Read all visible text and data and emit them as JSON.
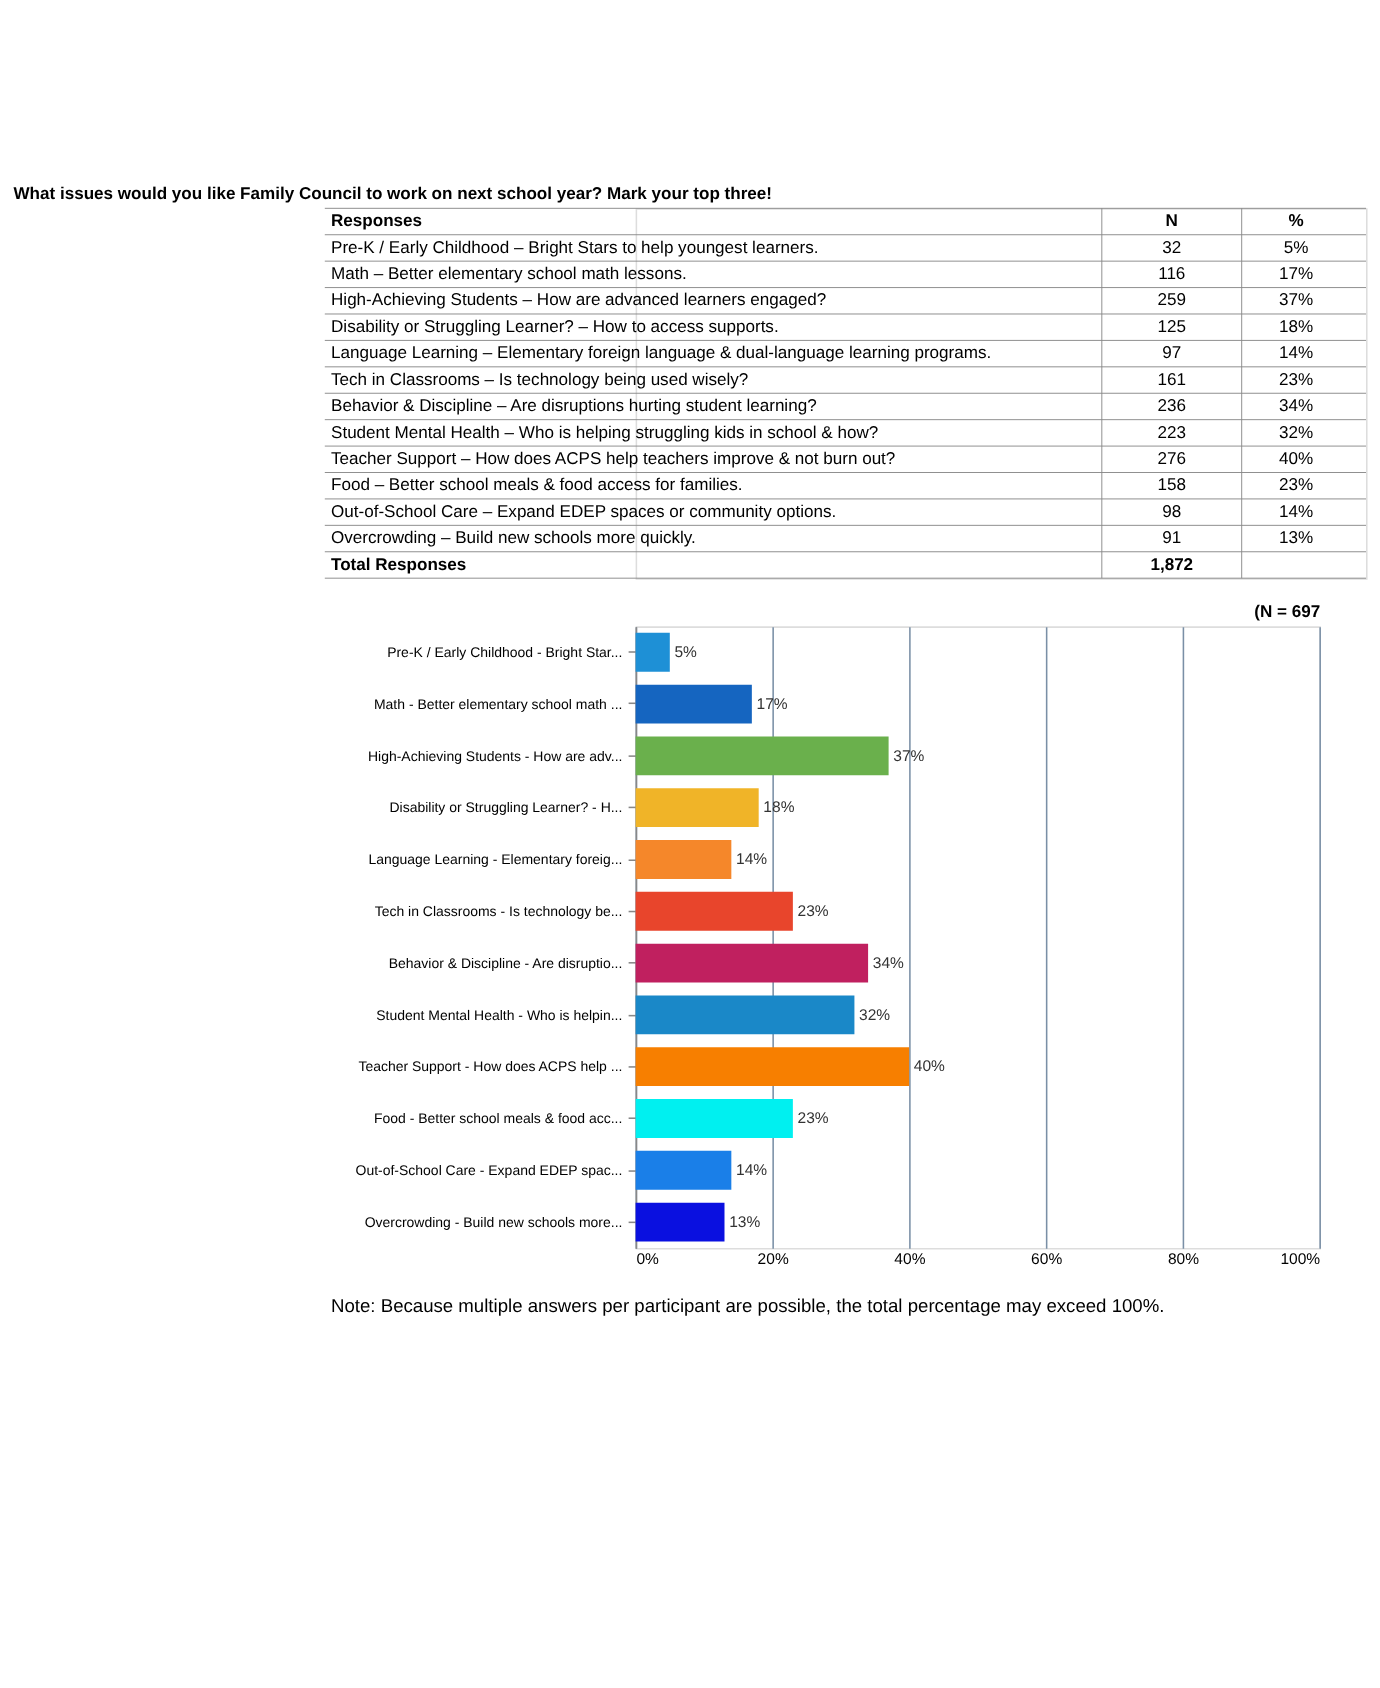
{
  "chart_data": [
    {
      "type": "other",
      "data_labels": true,
      "title": "What issues would you like Family Council to work on next school year? Mark your top three!",
      "categories": [
        "Pre-K / Early Childhood – Bright Stars to help youngest learners.",
        "Math – Better elementary school math lessons.",
        "High-Achieving Students – How are advanced learners engaged?",
        "Disability or Struggling Learner? – How to access supports.",
        "Language Learning – Elementary foreign language & dual-language learning programs.",
        "Tech in Classrooms – Is technology being used wisely?",
        "Behavior & Discipline – Are disruptions hurting student learning?",
        "Student Mental Health – Who is helping struggling kids in school & how?",
        "Teacher Support – How does ACPS help teachers improve & not burn out?",
        "Food – Better school meals & food access for families.",
        "Out-of-School Care – Expand EDEP spaces or community options.",
        "Overcrowding – Build new schools more quickly."
      ],
      "series": [
        {
          "name": "N",
          "values": [
            32,
            116,
            259,
            125,
            97,
            161,
            236,
            223,
            276,
            158,
            98,
            91
          ]
        },
        {
          "name": "%",
          "values": [
            5,
            17,
            37,
            18,
            14,
            23,
            34,
            32,
            40,
            23,
            14,
            13
          ],
          "value_labels": [
            "5%",
            "17%",
            "37%",
            "18%",
            "14%",
            "23%",
            "34%",
            "32%",
            "40%",
            "23%",
            "14%",
            "13%"
          ]
        }
      ],
      "annotations": [
        "Responses",
        "Total Responses",
        "1,872"
      ]
    },
    {
      "type": "bar",
      "orientation": "horizontal",
      "categories": [
        "Pre-K / Early Childhood - Bright Star...",
        "Math - Better elementary school math ...",
        "High-Achieving Students - How are adv...",
        "Disability or Struggling Learner? - H...",
        "Language Learning - Elementary foreig...",
        "Tech in Classrooms - Is technology be...",
        "Behavior & Discipline - Are disruptio...",
        "Student Mental Health - Who is helpin...",
        "Teacher Support - How does ACPS help ...",
        "Food - Better school meals & food acc...",
        "Out-of-School Care - Expand EDEP spac...",
        "Overcrowding - Build new schools more..."
      ],
      "values": [
        5,
        17,
        37,
        18,
        14,
        23,
        34,
        32,
        40,
        23,
        14,
        13
      ],
      "colors": [
        "#1e90d6",
        "#1565c0",
        "#6ab04c",
        "#f0b428",
        "#f5872a",
        "#e8452c",
        "#c0205f",
        "#1a88c8",
        "#f77f00",
        "#00f0f0",
        "#1a7fe8",
        "#0a10e0"
      ],
      "value_labels": [
        "5%",
        "17%",
        "37%",
        "18%",
        "14%",
        "23%",
        "34%",
        "32%",
        "40%",
        "23%",
        "14%",
        "13%"
      ],
      "xlim": [
        0,
        100
      ],
      "xticks": [
        {
          "value": 0,
          "label": "0%"
        },
        {
          "value": 20,
          "label": "20%"
        },
        {
          "value": 40,
          "label": "40%"
        },
        {
          "value": 60,
          "label": "60%"
        },
        {
          "value": 80,
          "label": "80%"
        },
        {
          "value": 100,
          "label": "100%"
        }
      ],
      "grid": "x",
      "annotations": [
        "(N = 697",
        "Note: Because multiple answers per participant are possible, the total percentage may exceed 100%."
      ]
    }
  ]
}
